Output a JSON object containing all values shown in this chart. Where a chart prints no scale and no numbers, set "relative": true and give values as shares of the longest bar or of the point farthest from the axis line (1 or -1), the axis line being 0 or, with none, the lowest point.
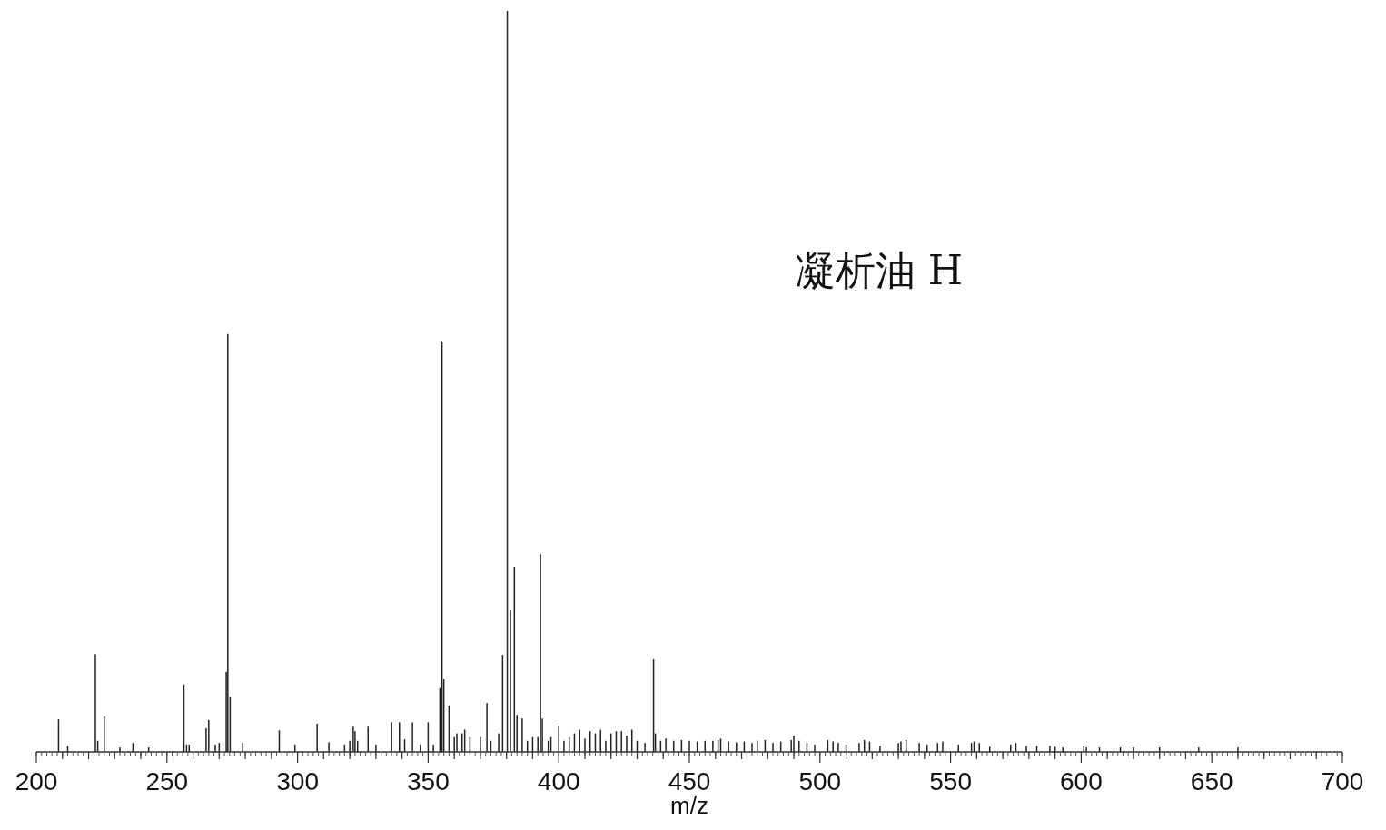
{
  "chart_data": {
    "type": "bar",
    "relative": true,
    "xlabel": "m/z",
    "annotations": [
      "凝析油 H"
    ],
    "color": "#222222",
    "x": [
      208.5,
      212,
      222.6,
      223.5,
      226,
      232,
      237,
      243,
      256.5,
      257.5,
      258.5,
      265,
      266,
      268.5,
      270,
      272.7,
      273.3,
      274.2,
      279,
      293,
      299,
      307.5,
      312,
      318,
      320,
      321.3,
      322,
      323,
      327,
      330,
      336,
      339,
      341,
      344,
      347,
      350,
      352,
      354.5,
      355.3,
      356,
      358,
      360,
      361,
      363,
      364,
      366,
      370,
      372.5,
      374,
      377,
      378.5,
      380.3,
      381.5,
      383,
      384,
      386,
      388,
      390,
      392,
      393,
      393.7,
      396,
      397,
      400,
      402,
      404,
      406,
      408,
      410,
      412,
      414,
      416,
      418,
      420,
      422,
      424,
      426,
      428,
      430,
      433,
      436.3,
      437,
      439,
      441,
      444,
      447,
      450,
      453,
      456,
      459,
      461,
      462,
      465,
      468,
      471,
      474,
      476,
      479,
      482,
      485,
      489,
      490,
      492,
      495,
      498,
      503,
      505,
      507,
      510,
      515,
      517,
      519,
      523,
      530,
      531,
      533,
      538,
      541,
      545,
      547,
      553,
      558,
      559,
      561,
      565,
      573,
      575,
      579,
      583,
      588,
      590,
      593,
      601,
      602,
      607,
      615,
      620,
      630,
      645,
      660
    ],
    "values": [
      0.044,
      0.008,
      0.132,
      0.015,
      0.048,
      0.006,
      0.012,
      0.006,
      0.091,
      0.01,
      0.01,
      0.032,
      0.043,
      0.01,
      0.012,
      0.108,
      0.564,
      0.074,
      0.012,
      0.029,
      0.01,
      0.038,
      0.013,
      0.01,
      0.015,
      0.034,
      0.028,
      0.015,
      0.034,
      0.01,
      0.04,
      0.04,
      0.017,
      0.04,
      0.01,
      0.04,
      0.01,
      0.086,
      0.553,
      0.098,
      0.0625,
      0.02,
      0.025,
      0.025,
      0.03,
      0.02,
      0.02,
      0.066,
      0.015,
      0.025,
      0.131,
      1.0,
      0.191,
      0.25,
      0.05,
      0.045,
      0.015,
      0.02,
      0.02,
      0.267,
      0.045,
      0.015,
      0.02,
      0.035,
      0.015,
      0.02,
      0.025,
      0.03,
      0.018,
      0.028,
      0.025,
      0.03,
      0.015,
      0.025,
      0.028,
      0.028,
      0.022,
      0.03,
      0.015,
      0.012,
      0.125,
      0.025,
      0.015,
      0.018,
      0.015,
      0.016,
      0.015,
      0.014,
      0.015,
      0.015,
      0.016,
      0.018,
      0.014,
      0.013,
      0.014,
      0.012,
      0.015,
      0.016,
      0.012,
      0.014,
      0.016,
      0.022,
      0.015,
      0.012,
      0.01,
      0.016,
      0.014,
      0.012,
      0.01,
      0.012,
      0.016,
      0.014,
      0.008,
      0.012,
      0.014,
      0.016,
      0.012,
      0.01,
      0.012,
      0.014,
      0.01,
      0.012,
      0.014,
      0.012,
      0.007,
      0.01,
      0.012,
      0.008,
      0.008,
      0.008,
      0.007,
      0.006,
      0.008,
      0.006,
      0.006,
      0.006,
      0.006,
      0.006,
      0.006,
      0.006
    ],
    "xlim": [
      200,
      700
    ],
    "xticks": [
      200,
      {
        "value": 210,
        "label": null
      },
      {
        "value": 220,
        "label": null
      },
      {
        "value": 230,
        "label": null
      },
      {
        "value": 240,
        "label": null
      },
      250,
      {
        "value": 260,
        "label": null
      },
      {
        "value": 270,
        "label": null
      },
      {
        "value": 280,
        "label": null
      },
      {
        "value": 290,
        "label": null
      },
      300,
      {
        "value": 310,
        "label": null
      },
      {
        "value": 320,
        "label": null
      },
      {
        "value": 330,
        "label": null
      },
      {
        "value": 340,
        "label": null
      },
      350,
      {
        "value": 360,
        "label": null
      },
      {
        "value": 370,
        "label": null
      },
      {
        "value": 380,
        "label": null
      },
      {
        "value": 390,
        "label": null
      },
      400,
      {
        "value": 410,
        "label": null
      },
      {
        "value": 420,
        "label": null
      },
      {
        "value": 430,
        "label": null
      },
      {
        "value": 440,
        "label": null
      },
      450,
      {
        "value": 460,
        "label": null
      },
      {
        "value": 470,
        "label": null
      },
      {
        "value": 480,
        "label": null
      },
      {
        "value": 490,
        "label": null
      },
      500,
      {
        "value": 510,
        "label": null
      },
      {
        "value": 520,
        "label": null
      },
      {
        "value": 530,
        "label": null
      },
      {
        "value": 540,
        "label": null
      },
      550,
      {
        "value": 560,
        "label": null
      },
      {
        "value": 570,
        "label": null
      },
      {
        "value": 580,
        "label": null
      },
      {
        "value": 590,
        "label": null
      },
      600,
      {
        "value": 610,
        "label": null
      },
      {
        "value": 620,
        "label": null
      },
      {
        "value": 630,
        "label": null
      },
      {
        "value": 640,
        "label": null
      },
      650,
      {
        "value": 660,
        "label": null
      },
      {
        "value": 670,
        "label": null
      },
      {
        "value": 680,
        "label": null
      },
      {
        "value": 690,
        "label": null
      },
      700
    ]
  }
}
